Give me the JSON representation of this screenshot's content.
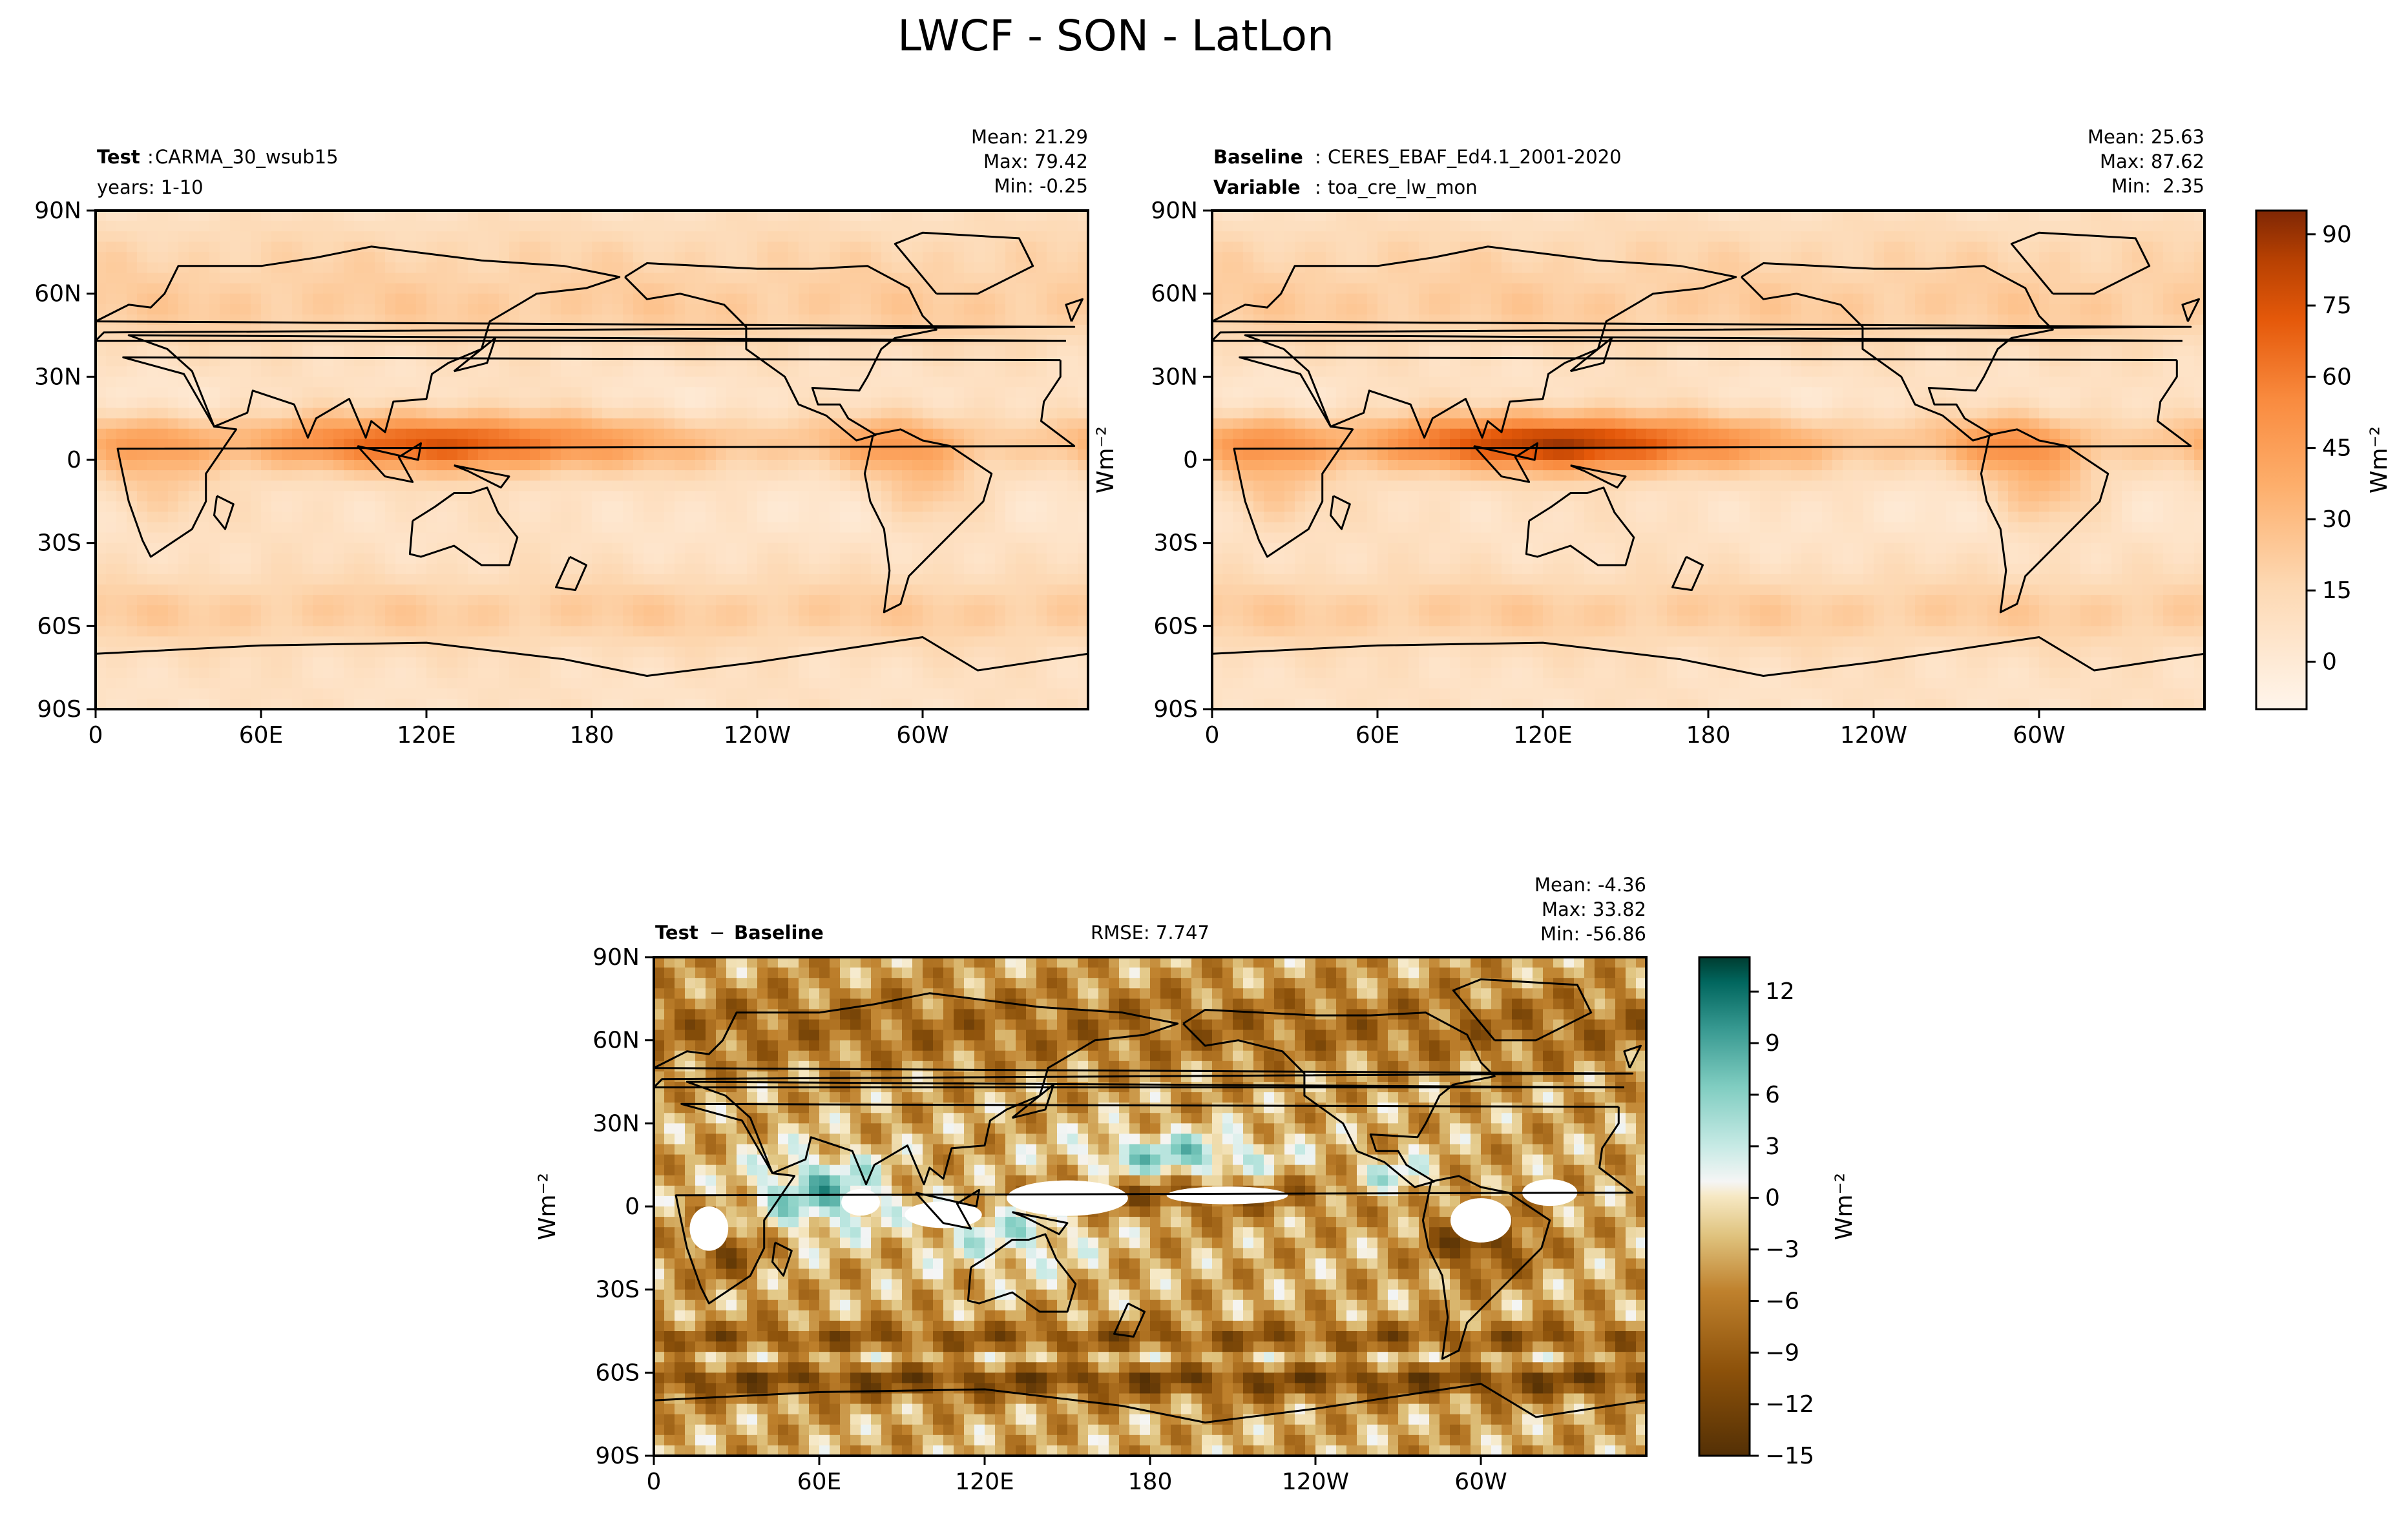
{
  "figure_title": "LWCF - SON - LatLon",
  "chart_data": [
    {
      "type": "heatmap",
      "panel": "test",
      "label_bold": "Test",
      "label_sep": ":",
      "label_value": "CARMA_30_wsub15",
      "label2": "years: 1-10",
      "stats": {
        "mean": "Mean: 21.29",
        "max": "Max: 79.42",
        "min": "Min: -0.25"
      },
      "lat_ticks": [
        "90N",
        "60N",
        "30N",
        "0",
        "30S",
        "60S",
        "90S"
      ],
      "lon_ticks": [
        "0",
        "60E",
        "120E",
        "180",
        "120W",
        "60W"
      ],
      "xlim": [
        0,
        360
      ],
      "ylim": [
        -90,
        90
      ],
      "colormap": "Oranges",
      "value_range": [
        -10,
        95
      ],
      "field_estimate": {
        "tropical_max": 55,
        "midlat_storm_track": 30,
        "subtropical_min": 5
      }
    },
    {
      "type": "heatmap",
      "panel": "baseline",
      "label_bold": "Baseline",
      "label_sep": ":",
      "label_value": "CERES_EBAF_Ed4.1_2001-2020",
      "label2_bold": "Variable",
      "label2_value": "toa_cre_lw_mon",
      "stats": {
        "mean": "Mean: 25.63",
        "max": "Max: 87.62",
        "min": "Min:  2.35"
      },
      "lat_ticks": [
        "90N",
        "60N",
        "30N",
        "0",
        "30S",
        "60S",
        "90S"
      ],
      "lon_ticks": [
        "0",
        "60E",
        "120E",
        "180",
        "120W",
        "60W"
      ],
      "xlim": [
        0,
        360
      ],
      "ylim": [
        -90,
        90
      ],
      "colormap": "Oranges",
      "value_range": [
        -10,
        95
      ],
      "field_estimate": {
        "tropical_max": 65,
        "midlat_storm_track": 32,
        "subtropical_min": 8
      },
      "colorbar": {
        "ticks": [
          "90",
          "75",
          "60",
          "45",
          "30",
          "15",
          "0"
        ],
        "tick_values": [
          90,
          75,
          60,
          45,
          30,
          15,
          0
        ],
        "range": [
          -10,
          95
        ]
      },
      "units": "Wm⁻²"
    },
    {
      "type": "heatmap",
      "panel": "difference",
      "label_bold": "Test",
      "label_minus": "−",
      "label_bold2": "Baseline",
      "rmse": "RMSE: 7.747",
      "stats": {
        "mean": "Mean: -4.36",
        "max": "Max: 33.82",
        "min": "Min: -56.86"
      },
      "lat_ticks": [
        "90N",
        "60N",
        "30N",
        "0",
        "30S",
        "60S",
        "90S"
      ],
      "lon_ticks": [
        "0",
        "60E",
        "120E",
        "180",
        "120W",
        "60W"
      ],
      "xlim": [
        0,
        360
      ],
      "ylim": [
        -90,
        90
      ],
      "colormap": "BrBG",
      "value_range": [
        -15,
        14
      ],
      "colorbar": {
        "ticks": [
          "12",
          "9",
          "6",
          "3",
          "0",
          "−3",
          "−6",
          "−9",
          "−12",
          "−15"
        ],
        "tick_values": [
          12,
          9,
          6,
          3,
          0,
          -3,
          -6,
          -9,
          -12,
          -15
        ],
        "range": [
          -15,
          14
        ]
      },
      "units": "Wm⁻²"
    }
  ]
}
